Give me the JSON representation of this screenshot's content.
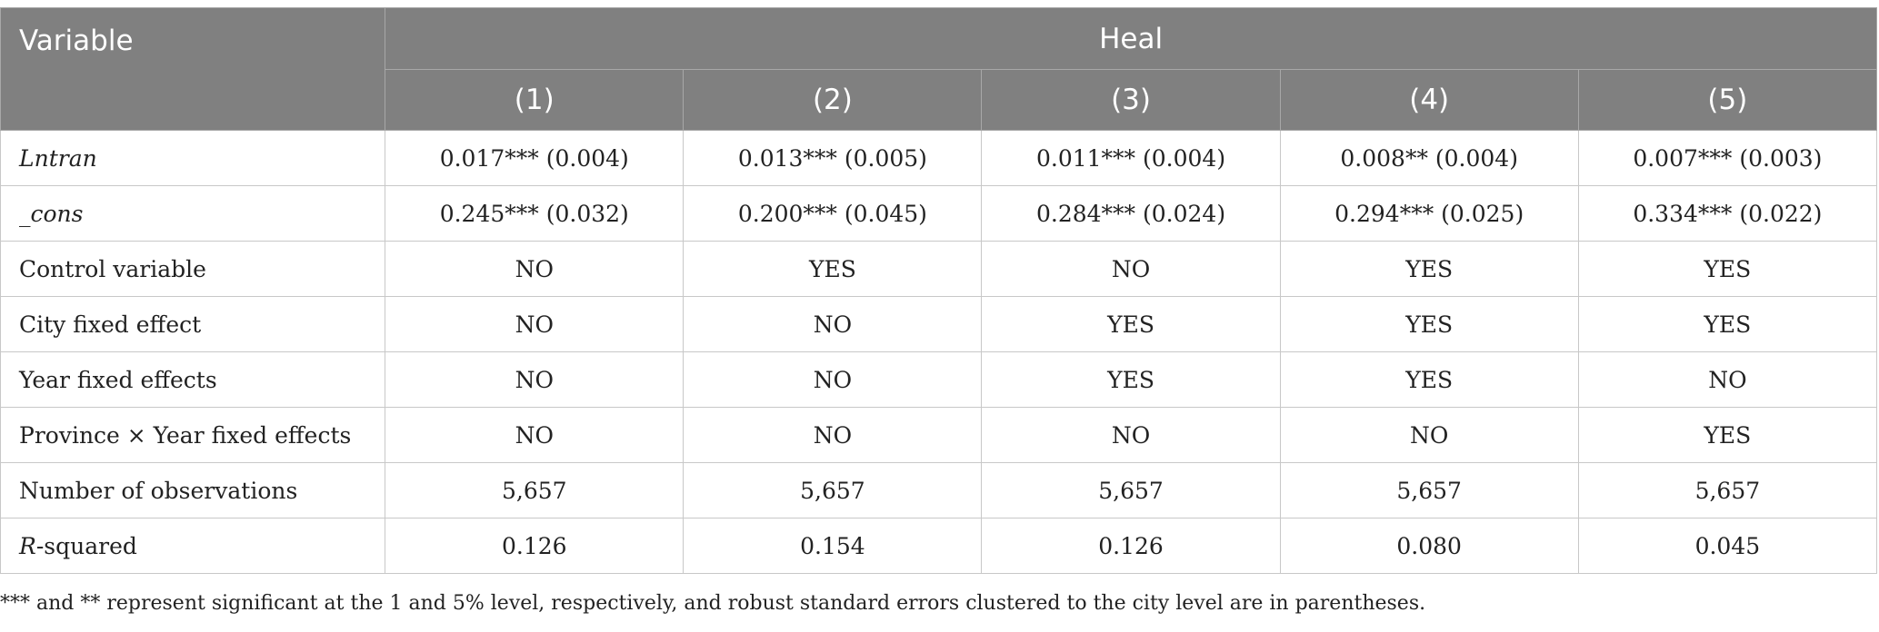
{
  "table": {
    "header": {
      "variable_label": "Variable",
      "group_label": "Heal",
      "columns": [
        "(1)",
        "(2)",
        "(3)",
        "(4)",
        "(5)"
      ]
    },
    "rows": [
      {
        "label": "Lntran",
        "label_italic": "Lntran",
        "label_rest": "",
        "cells": [
          "0.017*** (0.004)",
          "0.013*** (0.005)",
          "0.011*** (0.004)",
          "0.008** (0.004)",
          "0.007*** (0.003)"
        ]
      },
      {
        "label": "_cons",
        "label_italic": "_cons",
        "label_rest": "",
        "cells": [
          "0.245*** (0.032)",
          "0.200*** (0.045)",
          "0.284*** (0.024)",
          "0.294*** (0.025)",
          "0.334*** (0.022)"
        ]
      },
      {
        "label": "Control variable",
        "label_italic": "",
        "label_rest": "Control variable",
        "cells": [
          "NO",
          "YES",
          "NO",
          "YES",
          "YES"
        ]
      },
      {
        "label": "City fixed effect",
        "label_italic": "",
        "label_rest": "City fixed effect",
        "cells": [
          "NO",
          "NO",
          "YES",
          "YES",
          "YES"
        ]
      },
      {
        "label": "Year fixed effects",
        "label_italic": "",
        "label_rest": "Year fixed effects",
        "cells": [
          "NO",
          "NO",
          "YES",
          "YES",
          "NO"
        ]
      },
      {
        "label": "Province × Year fixed effects",
        "label_italic": "",
        "label_rest": "Province × Year fixed effects",
        "cells": [
          "NO",
          "NO",
          "NO",
          "NO",
          "YES"
        ]
      },
      {
        "label": "Number of observations",
        "label_italic": "",
        "label_rest": "Number of observations",
        "cells": [
          "5,657",
          "5,657",
          "5,657",
          "5,657",
          "5,657"
        ]
      },
      {
        "label": "R-squared",
        "label_italic": "R",
        "label_rest": "-squared",
        "cells": [
          "0.126",
          "0.154",
          "0.126",
          "0.080",
          "0.045"
        ]
      }
    ]
  },
  "footnote": "*** and ** represent significant at the 1 and 5% level, respectively, and robust standard errors clustered to the city level are in parentheses.",
  "colors": {
    "header_bg": "#808080",
    "header_text": "#ffffff",
    "grid": "#c8c8c8"
  }
}
